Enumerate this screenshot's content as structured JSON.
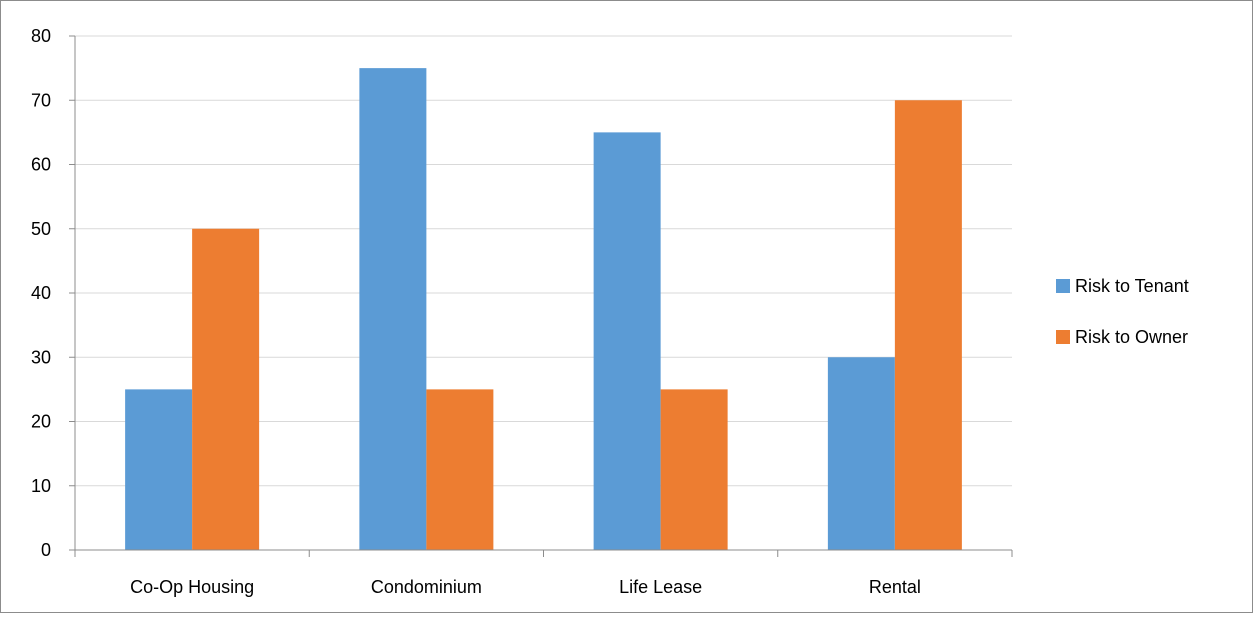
{
  "chart_data": {
    "type": "bar",
    "categories": [
      "Co-Op Housing",
      "Condominium",
      "Life Lease",
      "Rental"
    ],
    "series": [
      {
        "name": "Risk to Tenant",
        "values": [
          25,
          75,
          65,
          30
        ],
        "color": "#5b9bd5"
      },
      {
        "name": "Risk to Owner",
        "values": [
          50,
          25,
          25,
          70
        ],
        "color": "#ed7d31"
      }
    ],
    "y_ticks": [
      "0",
      "10",
      "20",
      "30",
      "40",
      "50",
      "60",
      "70",
      "80"
    ],
    "ylim": [
      0,
      80
    ],
    "grid": true,
    "legend_position": "right"
  }
}
